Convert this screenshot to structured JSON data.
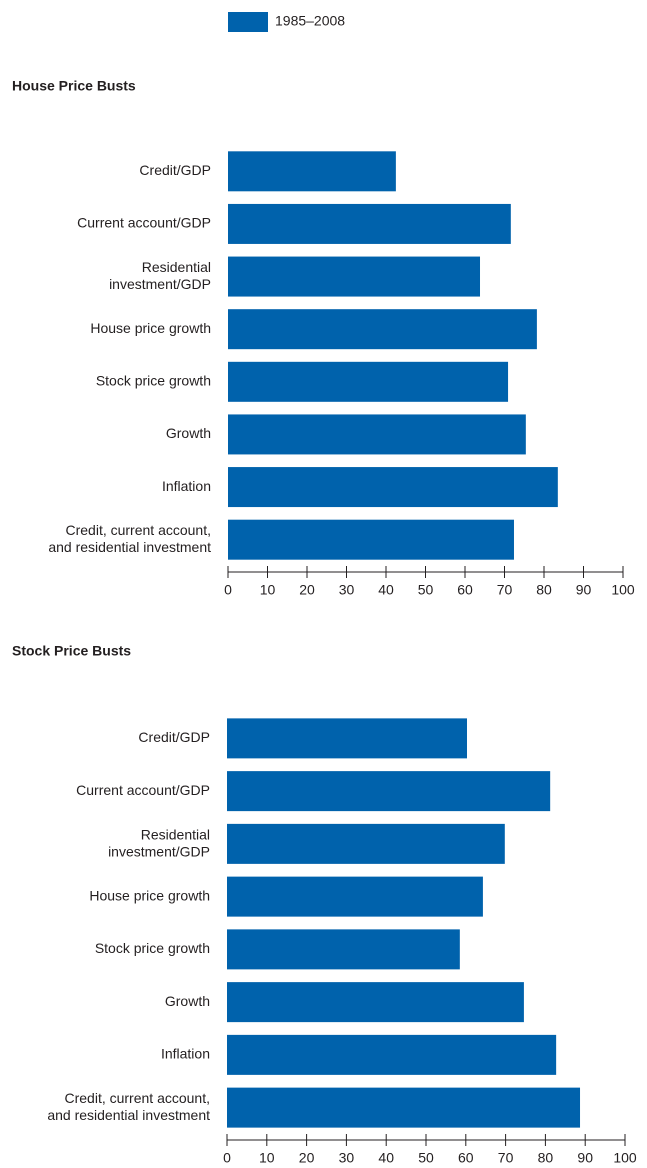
{
  "chart_data": [
    {
      "type": "bar",
      "orientation": "horizontal",
      "title": "House Price Busts",
      "categories": [
        "Credit/GDP",
        "Current account/GDP",
        "Residential\ninvestment/GDP",
        "House price growth",
        "Stock price growth",
        "Growth",
        "Inflation",
        "Credit, current account,\nand residential investment"
      ],
      "series": [
        {
          "name": "1985–2008",
          "color": "#0062ac",
          "values": [
            42.5,
            71.6,
            63.8,
            78.2,
            70.9,
            75.4,
            83.5,
            72.4
          ]
        }
      ],
      "xlim": [
        0,
        100
      ],
      "xticks": [
        0,
        10,
        20,
        30,
        40,
        50,
        60,
        70,
        80,
        90,
        100
      ]
    },
    {
      "type": "bar",
      "orientation": "horizontal",
      "title": "Stock Price Busts",
      "categories": [
        "Credit/GDP",
        "Current account/GDP",
        "Residential\ninvestment/GDP",
        "House price growth",
        "Stock price growth",
        "Growth",
        "Inflation",
        "Credit, current account,\nand residential investment"
      ],
      "series": [
        {
          "color": "#0062ac",
          "values": [
            60.3,
            81.2,
            69.8,
            64.3,
            58.5,
            74.6,
            82.7,
            88.7
          ]
        }
      ],
      "xlim": [
        0,
        100
      ],
      "xticks": [
        0,
        10,
        20,
        30,
        40,
        50,
        60,
        70,
        80,
        90,
        100
      ]
    }
  ]
}
